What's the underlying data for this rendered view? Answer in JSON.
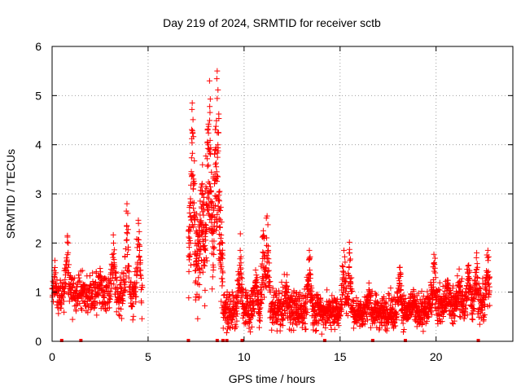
{
  "chart_data": {
    "type": "scatter",
    "title": "Day 219 of 2024, SRMTID for receiver sctb",
    "xlabel": "GPS time / hours",
    "ylabel": "SRMTID / TECUs",
    "xlim": [
      0,
      24
    ],
    "ylim": [
      0,
      6
    ],
    "xticks": [
      0,
      5,
      10,
      15,
      20
    ],
    "yticks": [
      0,
      1,
      2,
      3,
      4,
      5,
      6
    ],
    "grid": true,
    "marker": "plus",
    "color": "#ff0000",
    "series": [
      {
        "name": "SRMTID",
        "segments": [
          {
            "x_start": 0.0,
            "x_end": 4.7,
            "points": 520,
            "base": 0.95,
            "spread": 0.35,
            "spikes": [
              [
                0.15,
                1.5
              ],
              [
                0.8,
                2.15
              ],
              [
                1.6,
                1.1
              ],
              [
                2.5,
                1.3
              ],
              [
                3.2,
                2.0
              ],
              [
                3.9,
                2.8
              ],
              [
                4.5,
                2.4
              ]
            ]
          },
          {
            "x_start": 7.1,
            "x_end": 8.9,
            "points": 360,
            "base": 1.6,
            "spread": 0.9,
            "spikes": [
              [
                7.3,
                4.85
              ],
              [
                8.1,
                4.3
              ],
              [
                8.2,
                5.3
              ],
              [
                8.6,
                5.5
              ],
              [
                8.5,
                3.9
              ],
              [
                7.8,
                3.0
              ],
              [
                8.7,
                2.5
              ]
            ]
          },
          {
            "x_start": 8.9,
            "x_end": 14.0,
            "points": 700,
            "base": 0.65,
            "spread": 0.35,
            "spikes": [
              [
                9.8,
                1.85
              ],
              [
                10.6,
                1.45
              ],
              [
                11.0,
                2.25
              ],
              [
                11.2,
                2.55
              ],
              [
                12.2,
                1.2
              ],
              [
                13.4,
                1.85
              ]
            ]
          },
          {
            "x_start": 14.0,
            "x_end": 19.5,
            "points": 760,
            "base": 0.6,
            "spread": 0.3,
            "spikes": [
              [
                15.2,
                1.85
              ],
              [
                15.5,
                1.8
              ],
              [
                16.5,
                1.05
              ],
              [
                18.1,
                1.5
              ],
              [
                18.8,
                0.9
              ]
            ]
          },
          {
            "x_start": 19.5,
            "x_end": 22.8,
            "points": 460,
            "base": 0.75,
            "spread": 0.35,
            "spikes": [
              [
                19.9,
                1.6
              ],
              [
                20.6,
                1.15
              ],
              [
                21.2,
                1.2
              ],
              [
                21.7,
                1.55
              ],
              [
                22.1,
                1.7
              ],
              [
                22.7,
                1.85
              ]
            ]
          }
        ],
        "zero_markers": [
          0.5,
          1.5,
          7.1,
          8.6,
          8.9,
          9.1,
          9.9,
          14.2,
          16.7,
          18.4,
          22.2
        ]
      }
    ]
  }
}
